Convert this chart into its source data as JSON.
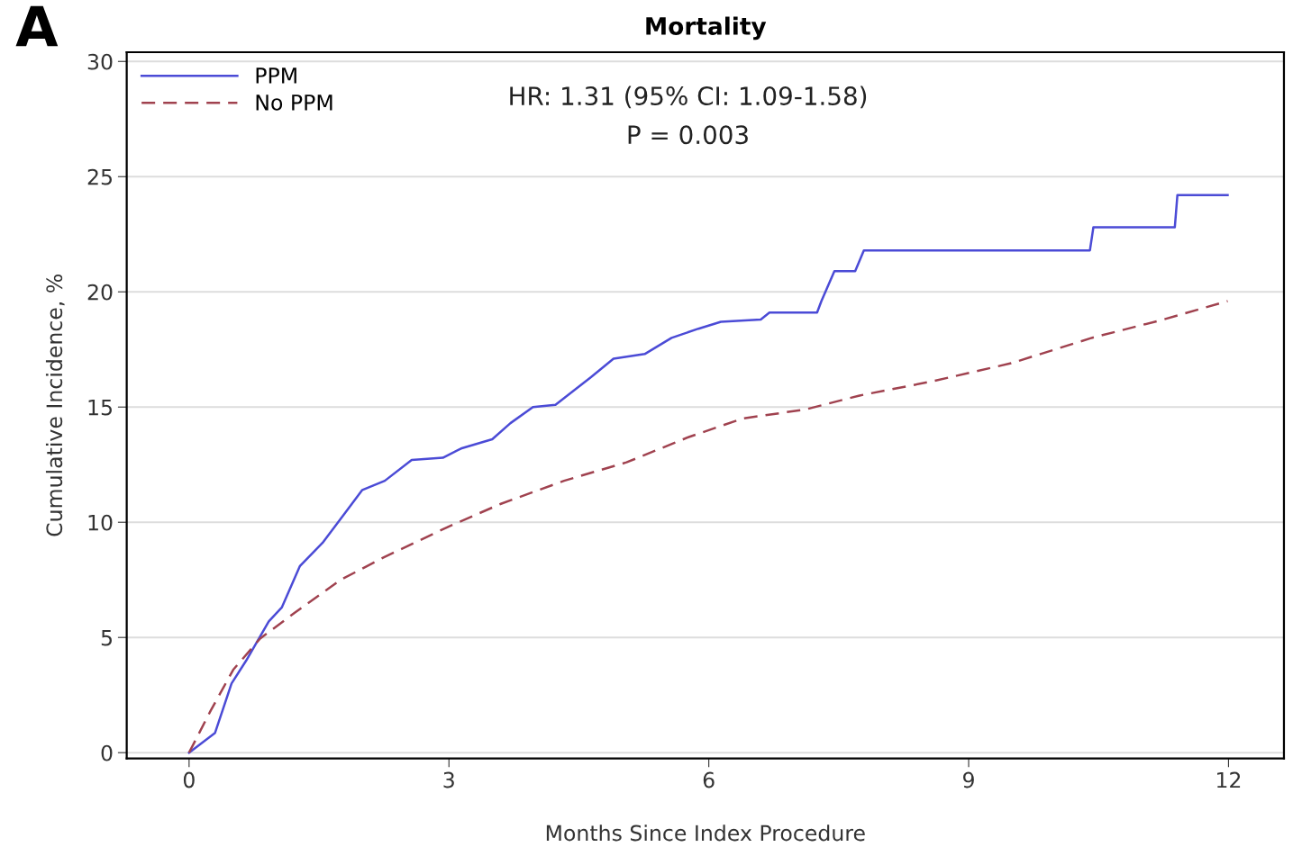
{
  "chart_data": {
    "type": "line",
    "title": "Mortality",
    "xlabel": "Months Since Index Procedure",
    "ylabel": "Cumulative Incidence, %",
    "xlim": [
      -0.72,
      12.64
    ],
    "ylim": [
      -0.25,
      30.4
    ],
    "xticks": [
      0,
      3,
      6,
      9,
      12
    ],
    "yticks": [
      0,
      5,
      10,
      15,
      20,
      25,
      30
    ],
    "grid": "y",
    "legend": "top left",
    "marker": "none",
    "annotations": [
      "A",
      "HR: 1.31 (95% CI: 1.09-1.58)",
      "P = 0.003"
    ],
    "series": [
      {
        "name": "PPM",
        "color": "#4b4bd6",
        "line_style": "solid",
        "x": [
          0,
          0.3,
          0.49,
          0.66,
          0.92,
          1.07,
          1.28,
          1.54,
          1.8,
          2.0,
          2.26,
          2.57,
          2.93,
          3.14,
          3.5,
          3.71,
          3.97,
          4.23,
          4.64,
          4.9,
          5.26,
          5.57,
          5.88,
          6.14,
          6.6,
          6.7,
          7.25,
          7.3,
          7.45,
          7.69,
          7.79,
          10.4,
          10.44,
          11.38,
          11.41,
          11.99
        ],
        "values": [
          0,
          0.86,
          3.0,
          4.0,
          5.7,
          6.3,
          8.1,
          9.1,
          10.4,
          11.4,
          11.8,
          12.7,
          12.8,
          13.2,
          13.6,
          14.3,
          15.0,
          15.1,
          16.3,
          17.1,
          17.3,
          18.0,
          18.4,
          18.7,
          18.8,
          19.1,
          19.1,
          19.6,
          20.9,
          20.9,
          21.8,
          21.8,
          22.8,
          22.8,
          24.2,
          24.2
        ]
      },
      {
        "name": "No PPM",
        "color": "#a0424f",
        "line_style": "dashed",
        "x": [
          0,
          0.25,
          0.51,
          0.82,
          1.23,
          1.75,
          2.26,
          2.99,
          3.6,
          4.33,
          5.05,
          5.77,
          6.39,
          7.12,
          7.74,
          8.56,
          9.49,
          10.42,
          11.25,
          11.99
        ],
        "values": [
          0,
          1.83,
          3.6,
          4.95,
          6.1,
          7.5,
          8.5,
          9.8,
          10.8,
          11.8,
          12.6,
          13.7,
          14.5,
          14.9,
          15.5,
          16.1,
          16.9,
          18.0,
          18.8,
          19.6
        ]
      }
    ]
  }
}
